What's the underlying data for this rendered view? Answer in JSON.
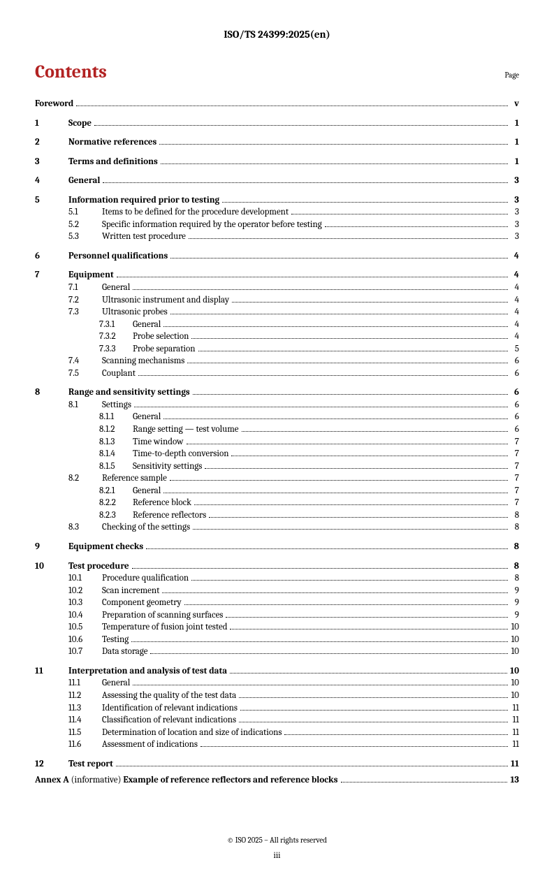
{
  "header": "ISO/TS 24399:2025(en)",
  "contents_label": "Contents",
  "page_label": "Page",
  "footer": "© ISO 2025 – All rights reserved",
  "pagenum": "iii",
  "entries": [
    {
      "level": 0,
      "num": "",
      "title": "Foreword",
      "page": "v"
    },
    {
      "level": 1,
      "num": "1",
      "title": "Scope",
      "page": "1"
    },
    {
      "level": 1,
      "num": "2",
      "title": "Normative references",
      "page": "1"
    },
    {
      "level": 1,
      "num": "3",
      "title": "Terms and definitions",
      "page": "1"
    },
    {
      "level": 1,
      "num": "4",
      "title": "General",
      "page": "3"
    },
    {
      "level": 1,
      "num": "5",
      "title": "Information required prior to testing",
      "page": "3"
    },
    {
      "level": 2,
      "num": "5.1",
      "title": "Items to be defined for the procedure development",
      "page": "3"
    },
    {
      "level": 2,
      "num": "5.2",
      "title": "Specific information required by the operator before testing",
      "page": "3"
    },
    {
      "level": 2,
      "num": "5.3",
      "title": "Written test procedure",
      "page": "3"
    },
    {
      "level": 1,
      "num": "6",
      "title": "Personnel qualifications",
      "page": "4"
    },
    {
      "level": 1,
      "num": "7",
      "title": "Equipment",
      "page": "4"
    },
    {
      "level": 2,
      "num": "7.1",
      "title": "General",
      "page": "4"
    },
    {
      "level": 2,
      "num": "7.2",
      "title": "Ultrasonic instrument and display",
      "page": "4"
    },
    {
      "level": 2,
      "num": "7.3",
      "title": "Ultrasonic probes",
      "page": "4"
    },
    {
      "level": 3,
      "num": "7.3.1",
      "title": "General",
      "page": "4"
    },
    {
      "level": 3,
      "num": "7.3.2",
      "title": "Probe selection",
      "page": "4"
    },
    {
      "level": 3,
      "num": "7.3.3",
      "title": "Probe separation",
      "page": "5"
    },
    {
      "level": 2,
      "num": "7.4",
      "title": "Scanning mechanisms",
      "page": "6"
    },
    {
      "level": 2,
      "num": "7.5",
      "title": "Couplant",
      "page": "6"
    },
    {
      "level": 1,
      "num": "8",
      "title": "Range and sensitivity settings",
      "page": "6"
    },
    {
      "level": 2,
      "num": "8.1",
      "title": "Settings",
      "page": "6"
    },
    {
      "level": 3,
      "num": "8.1.1",
      "title": "General",
      "page": "6"
    },
    {
      "level": 3,
      "num": "8.1.2",
      "title": "Range setting — test volume",
      "page": "6"
    },
    {
      "level": 3,
      "num": "8.1.3",
      "title": "Time window",
      "page": "7"
    },
    {
      "level": 3,
      "num": "8.1.4",
      "title": "Time-to-depth conversion",
      "page": "7"
    },
    {
      "level": 3,
      "num": "8.1.5",
      "title": "Sensitivity settings",
      "page": "7"
    },
    {
      "level": 2,
      "num": "8.2",
      "title": "Reference sample",
      "page": "7"
    },
    {
      "level": 3,
      "num": "8.2.1",
      "title": "General",
      "page": "7"
    },
    {
      "level": 3,
      "num": "8.2.2",
      "title": "Reference block",
      "page": "7"
    },
    {
      "level": 3,
      "num": "8.2.3",
      "title": "Reference reflectors",
      "page": "8"
    },
    {
      "level": 2,
      "num": "8.3",
      "title": "Checking of the settings",
      "page": "8"
    },
    {
      "level": 1,
      "num": "9",
      "title": "Equipment checks",
      "page": "8"
    },
    {
      "level": 1,
      "num": "10",
      "title": "Test procedure",
      "page": "8"
    },
    {
      "level": 2,
      "num": "10.1",
      "title": "Procedure qualification",
      "page": "8"
    },
    {
      "level": 2,
      "num": "10.2",
      "title": "Scan increment",
      "page": "9"
    },
    {
      "level": 2,
      "num": "10.3",
      "title": "Component geometry",
      "page": "9"
    },
    {
      "level": 2,
      "num": "10.4",
      "title": "Preparation of scanning surfaces",
      "page": "9"
    },
    {
      "level": 2,
      "num": "10.5",
      "title": "Temperature of fusion joint tested",
      "page": "10"
    },
    {
      "level": 2,
      "num": "10.6",
      "title": "Testing",
      "page": "10"
    },
    {
      "level": 2,
      "num": "10.7",
      "title": "Data storage",
      "page": "10"
    },
    {
      "level": 1,
      "num": "11",
      "title": "Interpretation and analysis of test data",
      "page": "10"
    },
    {
      "level": 2,
      "num": "11.1",
      "title": "General",
      "page": "10"
    },
    {
      "level": 2,
      "num": "11.2",
      "title": "Assessing the quality of the test data",
      "page": "10"
    },
    {
      "level": 2,
      "num": "11.3",
      "title": "Identification of relevant indications",
      "page": "11"
    },
    {
      "level": 2,
      "num": "11.4",
      "title": "Classification of relevant indications",
      "page": "11"
    },
    {
      "level": 2,
      "num": "11.5",
      "title": "Determination of location and size of indications",
      "page": "11"
    },
    {
      "level": 2,
      "num": "11.6",
      "title": "Assessment of indications",
      "page": "11"
    },
    {
      "level": 1,
      "num": "12",
      "title": "Test report",
      "page": "11"
    }
  ],
  "annex": {
    "prefix": "Annex A",
    "info": "(informative)",
    "title": "Example of reference reflectors and reference blocks",
    "page": "13"
  }
}
